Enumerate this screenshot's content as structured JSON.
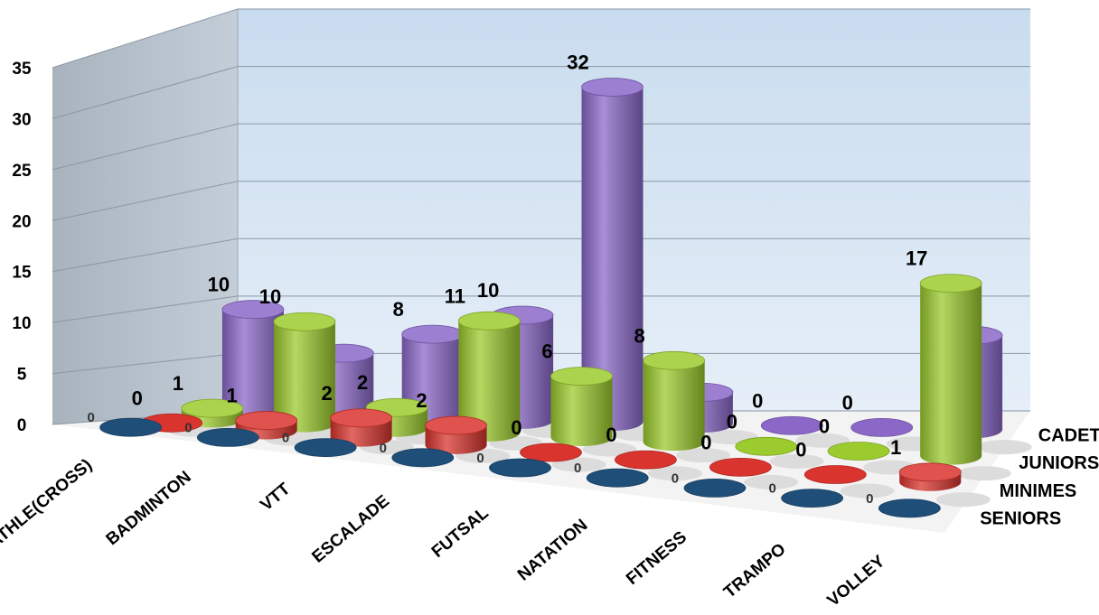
{
  "chart_data": {
    "type": "bar",
    "style": "3d-cylinder",
    "title": "",
    "xlabel": "",
    "ylabel": "",
    "ylim": [
      0,
      35
    ],
    "yticks": [
      0,
      5,
      10,
      15,
      20,
      25,
      30,
      35
    ],
    "grid": true,
    "categories": [
      "ATHLE(CROSS)",
      "BADMINTON",
      "VTT",
      "ESCALADE",
      "FUTSAL",
      "NATATION",
      "FITNESS",
      "TRAMPO",
      "VOLLEY"
    ],
    "series": [
      {
        "name": "CADETS",
        "color": "#8B68C8",
        "values": [
          10,
          6,
          8,
          10,
          32,
          3,
          0,
          0,
          9
        ]
      },
      {
        "name": "JUNIORS",
        "color": "#9CCB2E",
        "values": [
          1,
          10,
          2,
          11,
          6,
          8,
          0,
          0,
          17
        ]
      },
      {
        "name": "MINIMES",
        "color": "#D9342E",
        "values": [
          0,
          1,
          2,
          2,
          0,
          0,
          0,
          0,
          1
        ]
      },
      {
        "name": "SENIORS",
        "color": "#1F4E79",
        "values": [
          0,
          0,
          0,
          0,
          0,
          0,
          0,
          0,
          0
        ]
      }
    ]
  }
}
